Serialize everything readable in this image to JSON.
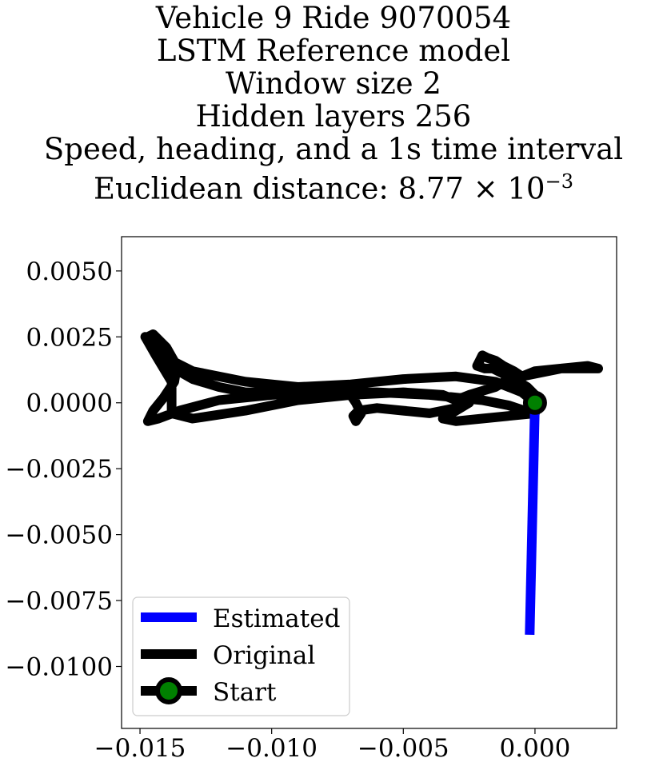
{
  "chart_data": {
    "type": "line",
    "title_lines": [
      "Vehicle 9 Ride 9070054",
      "LSTM Reference model",
      "Window size 2",
      "Hidden layers 256",
      "Speed, heading, and a 1s time interval",
      "Euclidean distance: 8.77 × 10",
      "−3"
    ],
    "xlabel": "",
    "ylabel": "",
    "xlim": [
      -0.0157,
      0.0031
    ],
    "ylim": [
      -0.01235,
      0.0063
    ],
    "x_ticks": [
      {
        "value": -0.015,
        "label": "−0.015"
      },
      {
        "value": -0.01,
        "label": "−0.010"
      },
      {
        "value": -0.005,
        "label": "−0.005"
      },
      {
        "value": 0.0,
        "label": "0.000"
      }
    ],
    "y_ticks": [
      {
        "value": 0.005,
        "label": "0.0050"
      },
      {
        "value": 0.0025,
        "label": "0.0025"
      },
      {
        "value": 0.0,
        "label": "0.0000"
      },
      {
        "value": -0.0025,
        "label": "−0.0025"
      },
      {
        "value": -0.005,
        "label": "−0.0050"
      },
      {
        "value": -0.0075,
        "label": "−0.0075"
      },
      {
        "value": -0.01,
        "label": "−0.0100"
      }
    ],
    "grid": false,
    "legend_position": "lower-left",
    "series": [
      {
        "name": "Estimated",
        "color": "#0000ff",
        "x": [
          0.0,
          -0.0002
        ],
        "y": [
          0.0,
          -0.0088
        ]
      },
      {
        "name": "Original",
        "color": "#000000",
        "x": [
          0.0,
          -0.0005,
          -0.0015,
          -0.003,
          -0.005,
          -0.007,
          -0.009,
          -0.011,
          -0.013,
          -0.0142,
          -0.0146,
          -0.0147,
          -0.0145,
          -0.014,
          -0.0136,
          -0.0137,
          -0.0141,
          -0.0145,
          -0.0147,
          -0.0143,
          -0.0135,
          -0.012,
          -0.01,
          -0.008,
          -0.006,
          -0.004,
          -0.002,
          -0.001,
          -0.0004,
          0.0,
          -0.001,
          -0.002,
          -0.003,
          -0.0035,
          -0.003,
          -0.0025,
          -0.003,
          -0.004,
          -0.005,
          -0.006,
          -0.0067,
          -0.0069,
          -0.0068,
          -0.0066,
          -0.0068,
          -0.007,
          -0.008,
          -0.009,
          -0.01,
          -0.011,
          -0.012,
          -0.013,
          -0.0137,
          -0.014,
          -0.0143,
          -0.0145,
          -0.0148,
          -0.0144,
          -0.0138,
          -0.0138,
          -0.013,
          -0.011,
          -0.009,
          -0.007,
          -0.005,
          -0.0035,
          -0.003,
          -0.0025,
          -0.0015,
          -0.001,
          0.0,
          0.001,
          0.002,
          0.0024,
          0.001,
          0.0,
          -0.0005,
          -0.0008,
          -0.0012,
          -0.0015,
          -0.0018,
          -0.002,
          -0.0021,
          -0.0022,
          -0.0019,
          -0.0016,
          -0.0012,
          -0.0008,
          -0.0003,
          0.0
        ],
        "y": [
          0.0,
          0.0004,
          0.0008,
          0.001,
          0.0009,
          0.0007,
          0.0006,
          0.0008,
          0.0012,
          0.0018,
          0.0022,
          0.0025,
          0.0026,
          0.0021,
          0.0014,
          0.0008,
          0.0002,
          -0.0003,
          -0.0007,
          -0.0006,
          -0.0003,
          0.0001,
          0.0003,
          0.0004,
          0.0004,
          0.0003,
          0.0001,
          -0.0001,
          -0.0003,
          -0.0004,
          -0.0005,
          -0.0006,
          -0.0007,
          -0.0006,
          -0.0003,
          0.0,
          -0.0002,
          -0.0004,
          -0.0003,
          -0.0002,
          -0.0003,
          -0.0005,
          -0.0007,
          -0.0004,
          0.0,
          0.0003,
          0.0005,
          0.0005,
          0.0004,
          0.0004,
          0.0006,
          0.0009,
          0.0013,
          0.0017,
          0.0021,
          0.0024,
          0.0025,
          0.0018,
          0.0008,
          -0.0004,
          -0.0006,
          -0.0003,
          0.0001,
          0.0003,
          0.0004,
          0.0003,
          0.0001,
          0.0003,
          0.0006,
          0.0009,
          0.0011,
          0.0013,
          0.0014,
          0.0013,
          0.0013,
          0.0012,
          0.001,
          0.0012,
          0.0014,
          0.0016,
          0.0017,
          0.0018,
          0.0016,
          0.0014,
          0.0013,
          0.0013,
          0.0011,
          0.0009,
          0.0006,
          0.0003
        ]
      },
      {
        "name": "Start",
        "color": "#000000",
        "marker_face": "#008000",
        "x": [
          0.0
        ],
        "y": [
          0.0
        ]
      }
    ]
  }
}
